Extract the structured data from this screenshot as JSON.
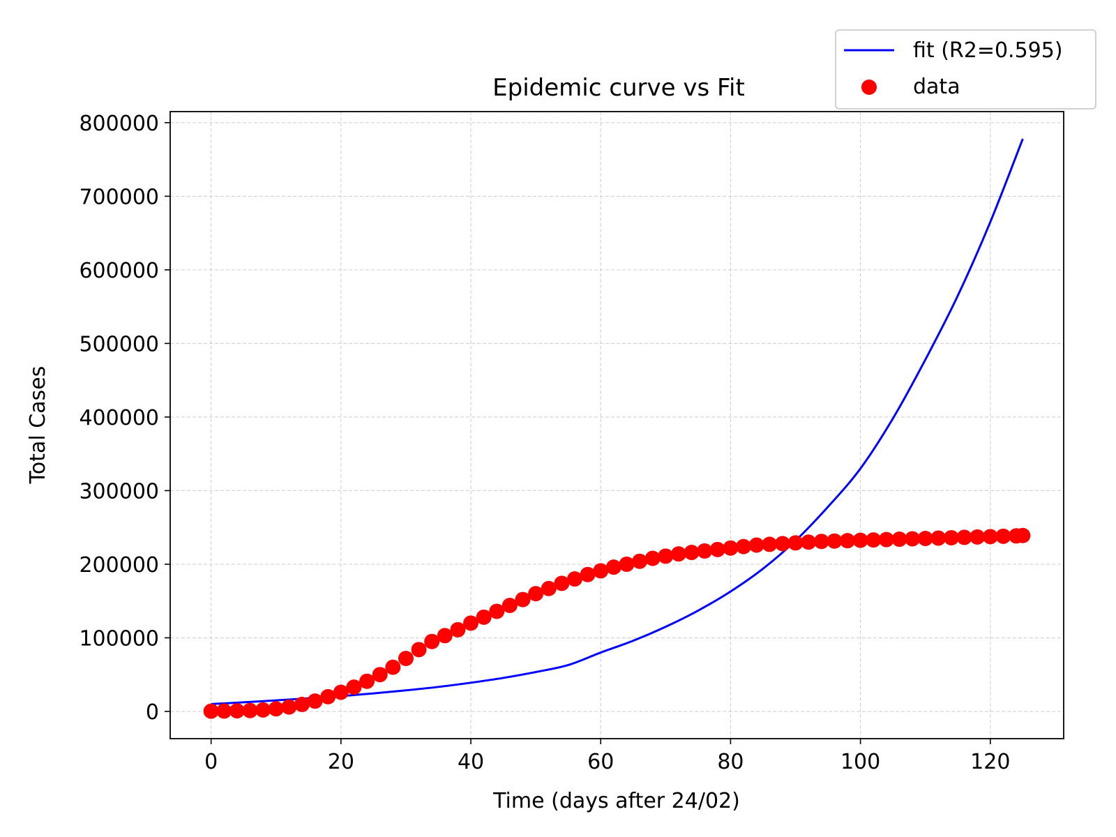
{
  "chart_data": {
    "type": "scatter",
    "title": "Epidemic curve vs Fit",
    "xlabel": "Time (days after 24/02)",
    "ylabel": "Total Cases",
    "xlim": [
      -6.3,
      131.3
    ],
    "ylim": [
      -37000,
      815000
    ],
    "xticks": [
      0,
      20,
      40,
      60,
      80,
      100,
      120
    ],
    "yticks": [
      0,
      100000,
      200000,
      300000,
      400000,
      500000,
      600000,
      700000,
      800000
    ],
    "xtick_labels": [
      "0",
      "20",
      "40",
      "60",
      "80",
      "100",
      "120"
    ],
    "ytick_labels": [
      "0",
      "100000",
      "200000",
      "300000",
      "400000",
      "500000",
      "600000",
      "700000",
      "800000"
    ],
    "grid": true,
    "legend_position": "top-right",
    "colors": {
      "fit": "#0000ff",
      "data": "#ff0000"
    },
    "series": [
      {
        "name": "fit (R2=0.595)",
        "kind": "line",
        "x": [
          0,
          5,
          10,
          15,
          20,
          25,
          30,
          35,
          40,
          45,
          50,
          55,
          60,
          65,
          70,
          75,
          80,
          85,
          90,
          95,
          100,
          105,
          110,
          115,
          120,
          125
        ],
        "y": [
          10000,
          12400,
          15000,
          17800,
          20800,
          24500,
          28600,
          33300,
          39000,
          45500,
          53500,
          63000,
          80000,
          96000,
          115000,
          137000,
          163000,
          194000,
          232000,
          278000,
          330000,
          398000,
          478000,
          565000,
          665000,
          778000
        ]
      },
      {
        "name": "data",
        "kind": "scatter",
        "x": [
          0,
          2,
          4,
          6,
          8,
          10,
          12,
          14,
          16,
          18,
          20,
          22,
          24,
          26,
          28,
          30,
          32,
          34,
          36,
          38,
          40,
          42,
          44,
          46,
          48,
          50,
          52,
          54,
          56,
          58,
          60,
          62,
          64,
          66,
          68,
          70,
          72,
          74,
          76,
          78,
          80,
          82,
          84,
          86,
          88,
          90,
          92,
          94,
          96,
          98,
          100,
          102,
          104,
          106,
          108,
          110,
          112,
          114,
          116,
          118,
          120,
          122,
          124,
          125
        ],
        "y": [
          300,
          500,
          800,
          1200,
          2000,
          3500,
          6000,
          9500,
          14000,
          20000,
          26000,
          33000,
          41000,
          50000,
          60000,
          72000,
          84000,
          95000,
          103000,
          111000,
          120000,
          128000,
          136000,
          144000,
          152000,
          160000,
          167000,
          174000,
          180000,
          186000,
          191000,
          196000,
          200000,
          204000,
          208000,
          211000,
          214000,
          216000,
          218000,
          220000,
          222000,
          224000,
          226000,
          227000,
          228000,
          229000,
          230000,
          231000,
          231500,
          232000,
          232500,
          233000,
          233500,
          234000,
          234500,
          235000,
          235500,
          236000,
          236500,
          237000,
          237500,
          238000,
          238500,
          239000
        ]
      }
    ]
  }
}
